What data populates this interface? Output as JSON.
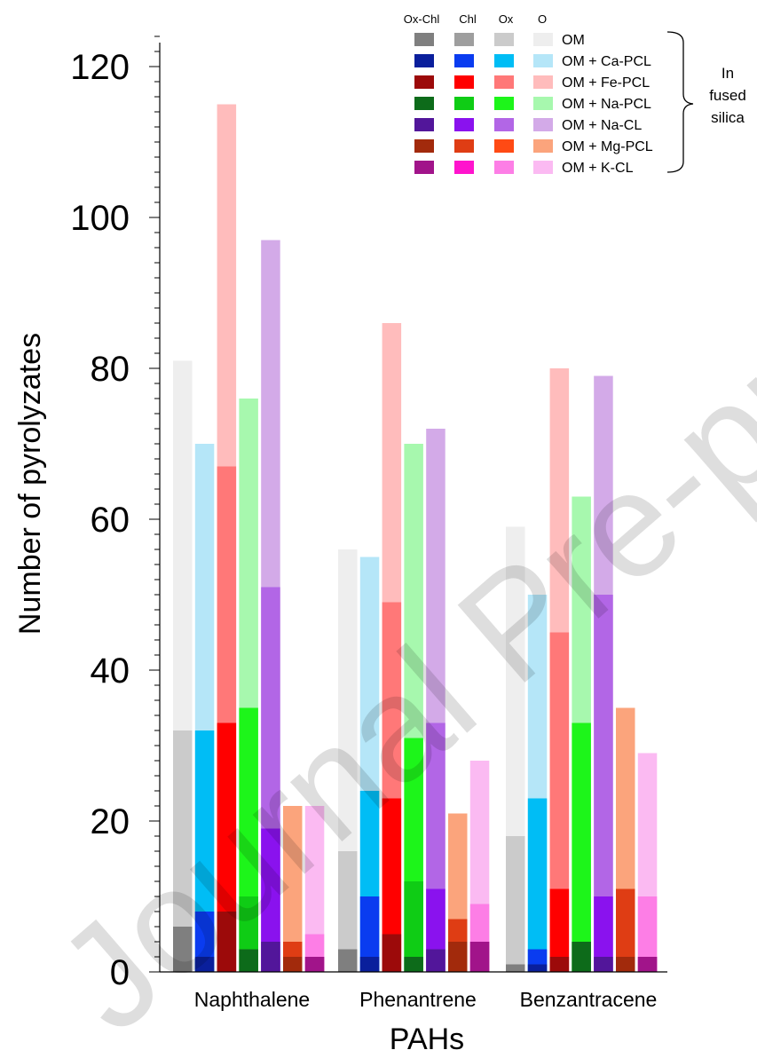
{
  "chart_data": {
    "type": "bar",
    "ylabel": "Number of pyrolyzates",
    "xlabel": "PAHs",
    "ylim": [
      0,
      125
    ],
    "yticks": [
      0,
      20,
      40,
      60,
      80,
      100,
      120
    ],
    "categories": [
      "Naphthalene",
      "Phenantrene",
      "Benzantracene"
    ],
    "legend": {
      "position": "top-right",
      "column_headers": [
        "Ox-Chl",
        "Chl",
        "Ox",
        "O"
      ],
      "bracket_label": "In fused silica"
    },
    "series": [
      {
        "name": "OM",
        "colors": [
          "#7f7f7f",
          "#9e9e9e",
          "#cbcbcb",
          "#eeeeee"
        ],
        "values": {
          "Ox-Chl": [
            6,
            3,
            1
          ],
          "Chl": [
            6,
            3,
            1
          ],
          "Ox": [
            32,
            16,
            18
          ],
          "O": [
            81,
            56,
            59
          ]
        }
      },
      {
        "name": "OM + Ca-PCL",
        "colors": [
          "#0a1f9c",
          "#0a3cf0",
          "#00bdf5",
          "#b5e6f8"
        ],
        "values": {
          "Ox-Chl": [
            2,
            2,
            1
          ],
          "Chl": [
            8,
            10,
            3
          ],
          "Ox": [
            32,
            24,
            23
          ],
          "O": [
            70,
            55,
            50
          ]
        }
      },
      {
        "name": "OM + Fe-PCL",
        "colors": [
          "#9c0a0a",
          "#ff0000",
          "#ff7878",
          "#ffbcbc"
        ],
        "values": {
          "Ox-Chl": [
            8,
            5,
            2
          ],
          "Chl": [
            33,
            23,
            11
          ],
          "Ox": [
            67,
            49,
            45
          ],
          "O": [
            115,
            86,
            80
          ]
        }
      },
      {
        "name": "OM + Na-PCL",
        "colors": [
          "#0d6b1a",
          "#0fcc15",
          "#1df51a",
          "#a7f8ae"
        ],
        "values": {
          "Ox-Chl": [
            3,
            2,
            4
          ],
          "Chl": [
            10,
            12,
            4
          ],
          "Ox": [
            35,
            31,
            33
          ],
          "O": [
            76,
            70,
            63
          ]
        }
      },
      {
        "name": "OM + Na-CL",
        "colors": [
          "#52169a",
          "#8a12ee",
          "#b266e6",
          "#d3aae8"
        ],
        "values": {
          "Ox-Chl": [
            4,
            3,
            2
          ],
          "Chl": [
            19,
            11,
            10
          ],
          "Ox": [
            51,
            33,
            50
          ],
          "O": [
            97,
            72,
            79
          ]
        }
      },
      {
        "name": "OM + Mg-PCL",
        "colors": [
          "#a22a0c",
          "#df3d14",
          "#ff4a14",
          "#fba47c"
        ],
        "values": {
          "Ox-Chl": [
            2,
            4,
            2
          ],
          "Chl": [
            4,
            7,
            11
          ],
          "Ox": [
            4,
            7,
            11
          ],
          "O": [
            22,
            21,
            35
          ]
        }
      },
      {
        "name": "OM + K-CL",
        "colors": [
          "#a1148a",
          "#ff14cd",
          "#fd7ee6",
          "#fbbaf2"
        ],
        "values": {
          "Ox-Chl": [
            2,
            4,
            2
          ],
          "Chl": [
            2,
            4,
            2
          ],
          "Ox": [
            5,
            9,
            10
          ],
          "O": [
            22,
            28,
            29
          ]
        }
      }
    ]
  },
  "watermark": "Journal Pre-proof"
}
